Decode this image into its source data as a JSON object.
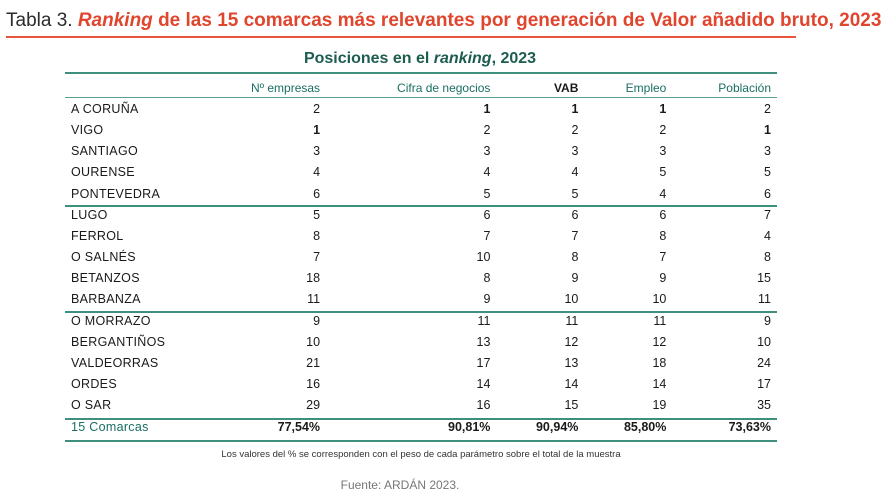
{
  "title": {
    "prefix": "Tabla 3.",
    "italic": "Ranking",
    "rest": "de las 15 comarcas más relevantes por generación de Valor añadido bruto, 2023"
  },
  "subtitle": {
    "main": "Posiciones en el",
    "italic": "ranking",
    "year": ", 2023"
  },
  "columns": [
    "Nº empresas",
    "Cifra de negocios",
    "VAB",
    "Empleo",
    "Población"
  ],
  "groups": [
    [
      {
        "name": "A CORUÑA",
        "values": [
          "2",
          "1",
          "1",
          "1",
          "2"
        ]
      },
      {
        "name": "VIGO",
        "values": [
          "1",
          "2",
          "2",
          "2",
          "1"
        ]
      },
      {
        "name": "SANTIAGO",
        "values": [
          "3",
          "3",
          "3",
          "3",
          "3"
        ]
      },
      {
        "name": "OURENSE",
        "values": [
          "4",
          "4",
          "4",
          "5",
          "5"
        ]
      },
      {
        "name": "PONTEVEDRA",
        "values": [
          "6",
          "5",
          "5",
          "4",
          "6"
        ]
      }
    ],
    [
      {
        "name": "LUGO",
        "values": [
          "5",
          "6",
          "6",
          "6",
          "7"
        ]
      },
      {
        "name": "FERROL",
        "values": [
          "8",
          "7",
          "7",
          "8",
          "4"
        ]
      },
      {
        "name": "O SALNÉS",
        "values": [
          "7",
          "10",
          "8",
          "7",
          "8"
        ]
      },
      {
        "name": "BETANZOS",
        "values": [
          "18",
          "8",
          "9",
          "9",
          "15"
        ]
      },
      {
        "name": "BARBANZA",
        "values": [
          "11",
          "9",
          "10",
          "10",
          "11"
        ]
      }
    ],
    [
      {
        "name": "O MORRAZO",
        "values": [
          "9",
          "11",
          "11",
          "11",
          "9"
        ]
      },
      {
        "name": "BERGANTIÑOS",
        "values": [
          "10",
          "13",
          "12",
          "12",
          "10"
        ]
      },
      {
        "name": "VALDEORRAS",
        "values": [
          "21",
          "17",
          "13",
          "18",
          "24"
        ]
      },
      {
        "name": "ORDES",
        "values": [
          "16",
          "14",
          "14",
          "14",
          "17"
        ]
      },
      {
        "name": "O SAR",
        "values": [
          "29",
          "16",
          "15",
          "19",
          "35"
        ]
      }
    ]
  ],
  "total": {
    "name": "15 Comarcas",
    "values": [
      "77,54%",
      "90,81%",
      "90,94%",
      "85,80%",
      "73,63%"
    ]
  },
  "note": "Los valores del % se corresponden con el peso de cada parámetro sobre el total de la muestra",
  "source": "Fuente: ARDÁN 2023.",
  "colors": {
    "accent": "#e0452e",
    "teal": "#1a6e63",
    "rule": "#3e8f7e"
  }
}
